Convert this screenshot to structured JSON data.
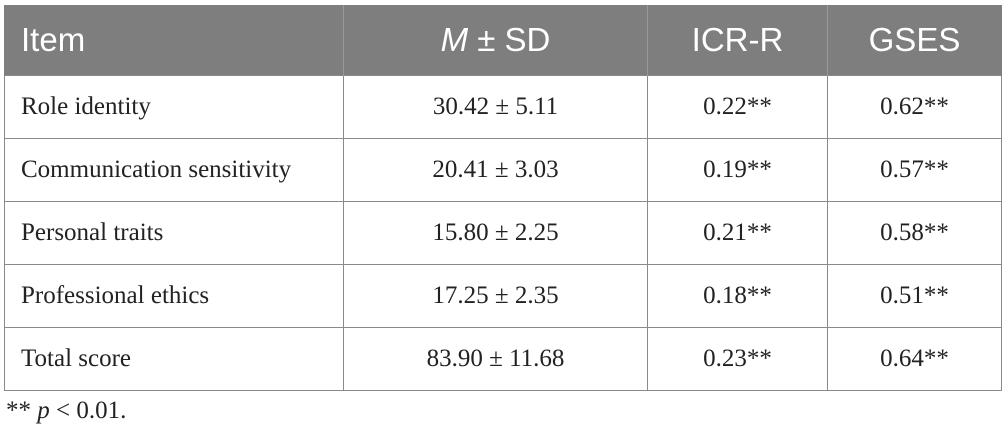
{
  "table": {
    "headers": {
      "item": "Item",
      "m": "M",
      "pm_sd": " ± SD",
      "icr": "ICR-R",
      "gses": "GSES"
    },
    "rows": [
      {
        "item": "Role identity",
        "msd": "30.42 ± 5.11",
        "icr": "0.22**",
        "gses": "0.62**"
      },
      {
        "item": "Communication sensitivity",
        "msd": "20.41 ± 3.03",
        "icr": "0.19**",
        "gses": "0.57**"
      },
      {
        "item": "Personal traits",
        "msd": "15.80 ± 2.25",
        "icr": "0.21**",
        "gses": "0.58**"
      },
      {
        "item": "Professional ethics",
        "msd": "17.25 ± 2.35",
        "icr": "0.18**",
        "gses": "0.51**"
      },
      {
        "item": "Total score",
        "msd": "83.90 ± 11.68",
        "icr": "0.23**",
        "gses": "0.64**"
      }
    ]
  },
  "footnote": {
    "stars": "** ",
    "p": "p",
    "rest": " < 0.01."
  },
  "colors": {
    "header_bg": "#7e7e7e",
    "header_text": "#ffffff",
    "border": "#8a8a8a"
  }
}
